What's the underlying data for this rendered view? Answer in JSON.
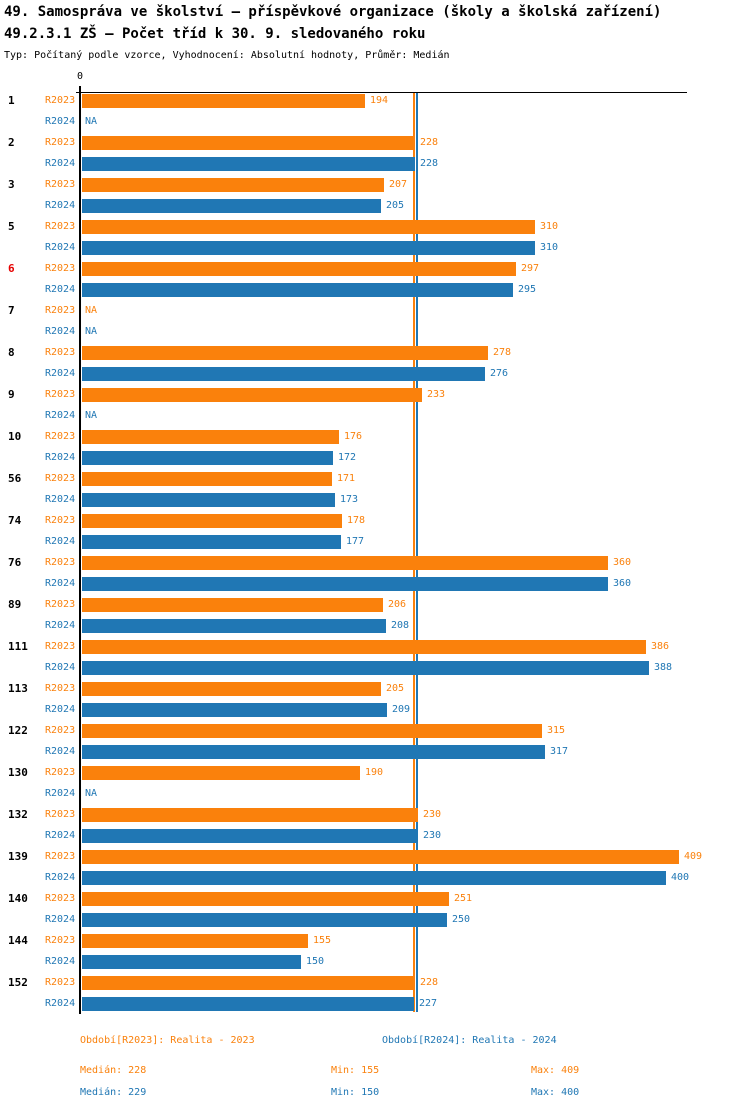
{
  "header": {
    "title": "49. Samospráva ve školství – příspěvkové organizace (školy a školská zařízení)",
    "subtitle": "49.2.3.1 ZŠ – Počet tříd k 30. 9. sledovaného roku",
    "meta": "Typ: Počítaný podle vzorce, Vyhodnocení: Absolutní hodnoty, Průměr: Medián"
  },
  "chart_data": {
    "type": "bar",
    "orientation": "horizontal",
    "title": "Počet tříd k 30. 9. sledovaného roku",
    "axis": {
      "zero_label": "0",
      "xlim": [
        0,
        414
      ],
      "grid": false
    },
    "na_label": "NA",
    "highlighted_category": "6",
    "highlight_color": "#e60000",
    "categories": [
      "1",
      "2",
      "3",
      "5",
      "6",
      "7",
      "8",
      "9",
      "10",
      "56",
      "74",
      "76",
      "89",
      "111",
      "113",
      "122",
      "130",
      "132",
      "139",
      "140",
      "144",
      "152"
    ],
    "series": [
      {
        "name": "R2023",
        "color": "#fa810c",
        "values": [
          194,
          228,
          207,
          310,
          297,
          null,
          278,
          233,
          176,
          171,
          178,
          360,
          206,
          386,
          205,
          315,
          190,
          230,
          409,
          251,
          155,
          228
        ]
      },
      {
        "name": "R2024",
        "color": "#2077b4",
        "values": [
          null,
          228,
          205,
          310,
          295,
          null,
          276,
          null,
          172,
          173,
          177,
          360,
          208,
          388,
          209,
          317,
          null,
          230,
          400,
          250,
          150,
          227
        ]
      }
    ],
    "median_lines": [
      {
        "series": "R2023",
        "value": 228,
        "color": "#fa810c"
      },
      {
        "series": "R2024",
        "value": 229,
        "color": "#2077b4"
      }
    ]
  },
  "legend": {
    "r2023_label": "Období[R2023]: Realita - 2023",
    "r2024_label": "Období[R2024]: Realita - 2024",
    "stats_r2023": {
      "median": "Medián: 228",
      "min": "Min: 155",
      "max": "Max: 409"
    },
    "stats_r2024": {
      "median": "Medián: 229",
      "min": "Min: 150",
      "max": "Max: 400"
    }
  },
  "colors": {
    "r2023": "#fa810c",
    "r2024": "#2077b4",
    "highlight": "#e60000",
    "axis": "#000000"
  }
}
